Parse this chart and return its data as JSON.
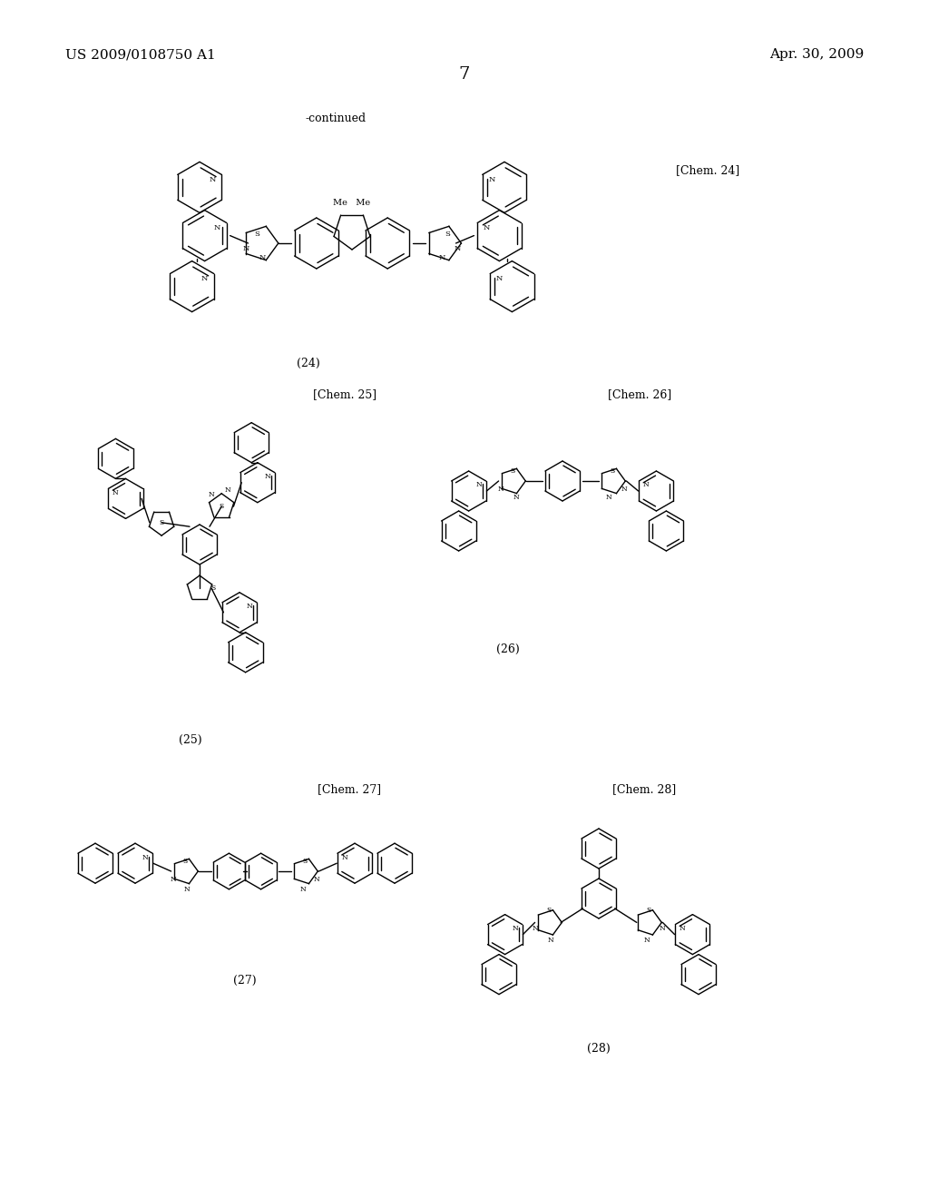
{
  "bg_color": "#ffffff",
  "text_color": "#000000",
  "header_left": "US 2009/0108750 A1",
  "header_right": "Apr. 30, 2009",
  "page_num": "7",
  "continued": "-continued",
  "chem_labels": [
    "[Chem. 24]",
    "[Chem. 25]",
    "[Chem. 26]",
    "[Chem. 27]",
    "[Chem. 28]"
  ],
  "chem_nums": [
    "(24)",
    "(25)",
    "(26)",
    "(27)",
    "(28)"
  ],
  "font_size_header": 11,
  "font_size_page": 12,
  "font_size_label": 9,
  "font_size_num": 9
}
